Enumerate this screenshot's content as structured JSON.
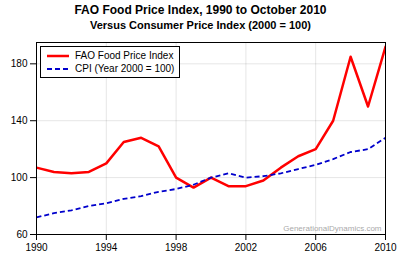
{
  "chart_data": {
    "type": "line",
    "title": "FAO Food Price Index, 1990 to October 2010",
    "subtitle": "Versus Consumer Price Index (2000 = 100)",
    "x": [
      1990,
      1991,
      1992,
      1993,
      1994,
      1995,
      1996,
      1997,
      1998,
      1999,
      2000,
      2001,
      2002,
      2003,
      2004,
      2005,
      2006,
      2007,
      2008,
      2009,
      2010
    ],
    "series": [
      {
        "name": "FAO Food Price Index",
        "color": "#ff0000",
        "line_style": "solid",
        "values": [
          107,
          104,
          103,
          104,
          110,
          125,
          128,
          122,
          100,
          93,
          100,
          94,
          94,
          98,
          107,
          115,
          120,
          140,
          185,
          150,
          192
        ]
      },
      {
        "name": "CPI (Year 2000 = 100)",
        "color": "#0000cc",
        "line_style": "dashed",
        "values": [
          72,
          75,
          77,
          80,
          82,
          85,
          87,
          90,
          92,
          95,
          100,
          103,
          100,
          101,
          103,
          106,
          109,
          113,
          118,
          120,
          128
        ]
      }
    ],
    "xlim": [
      1990,
      2010
    ],
    "ylim": [
      60,
      195
    ],
    "xticks": [
      1990,
      1994,
      1998,
      2002,
      2006,
      2010
    ],
    "yticks": [
      60,
      100,
      140,
      180
    ],
    "grid": true,
    "legend": "upper left",
    "annotations": [
      "GenerationalDynamics.com"
    ]
  }
}
